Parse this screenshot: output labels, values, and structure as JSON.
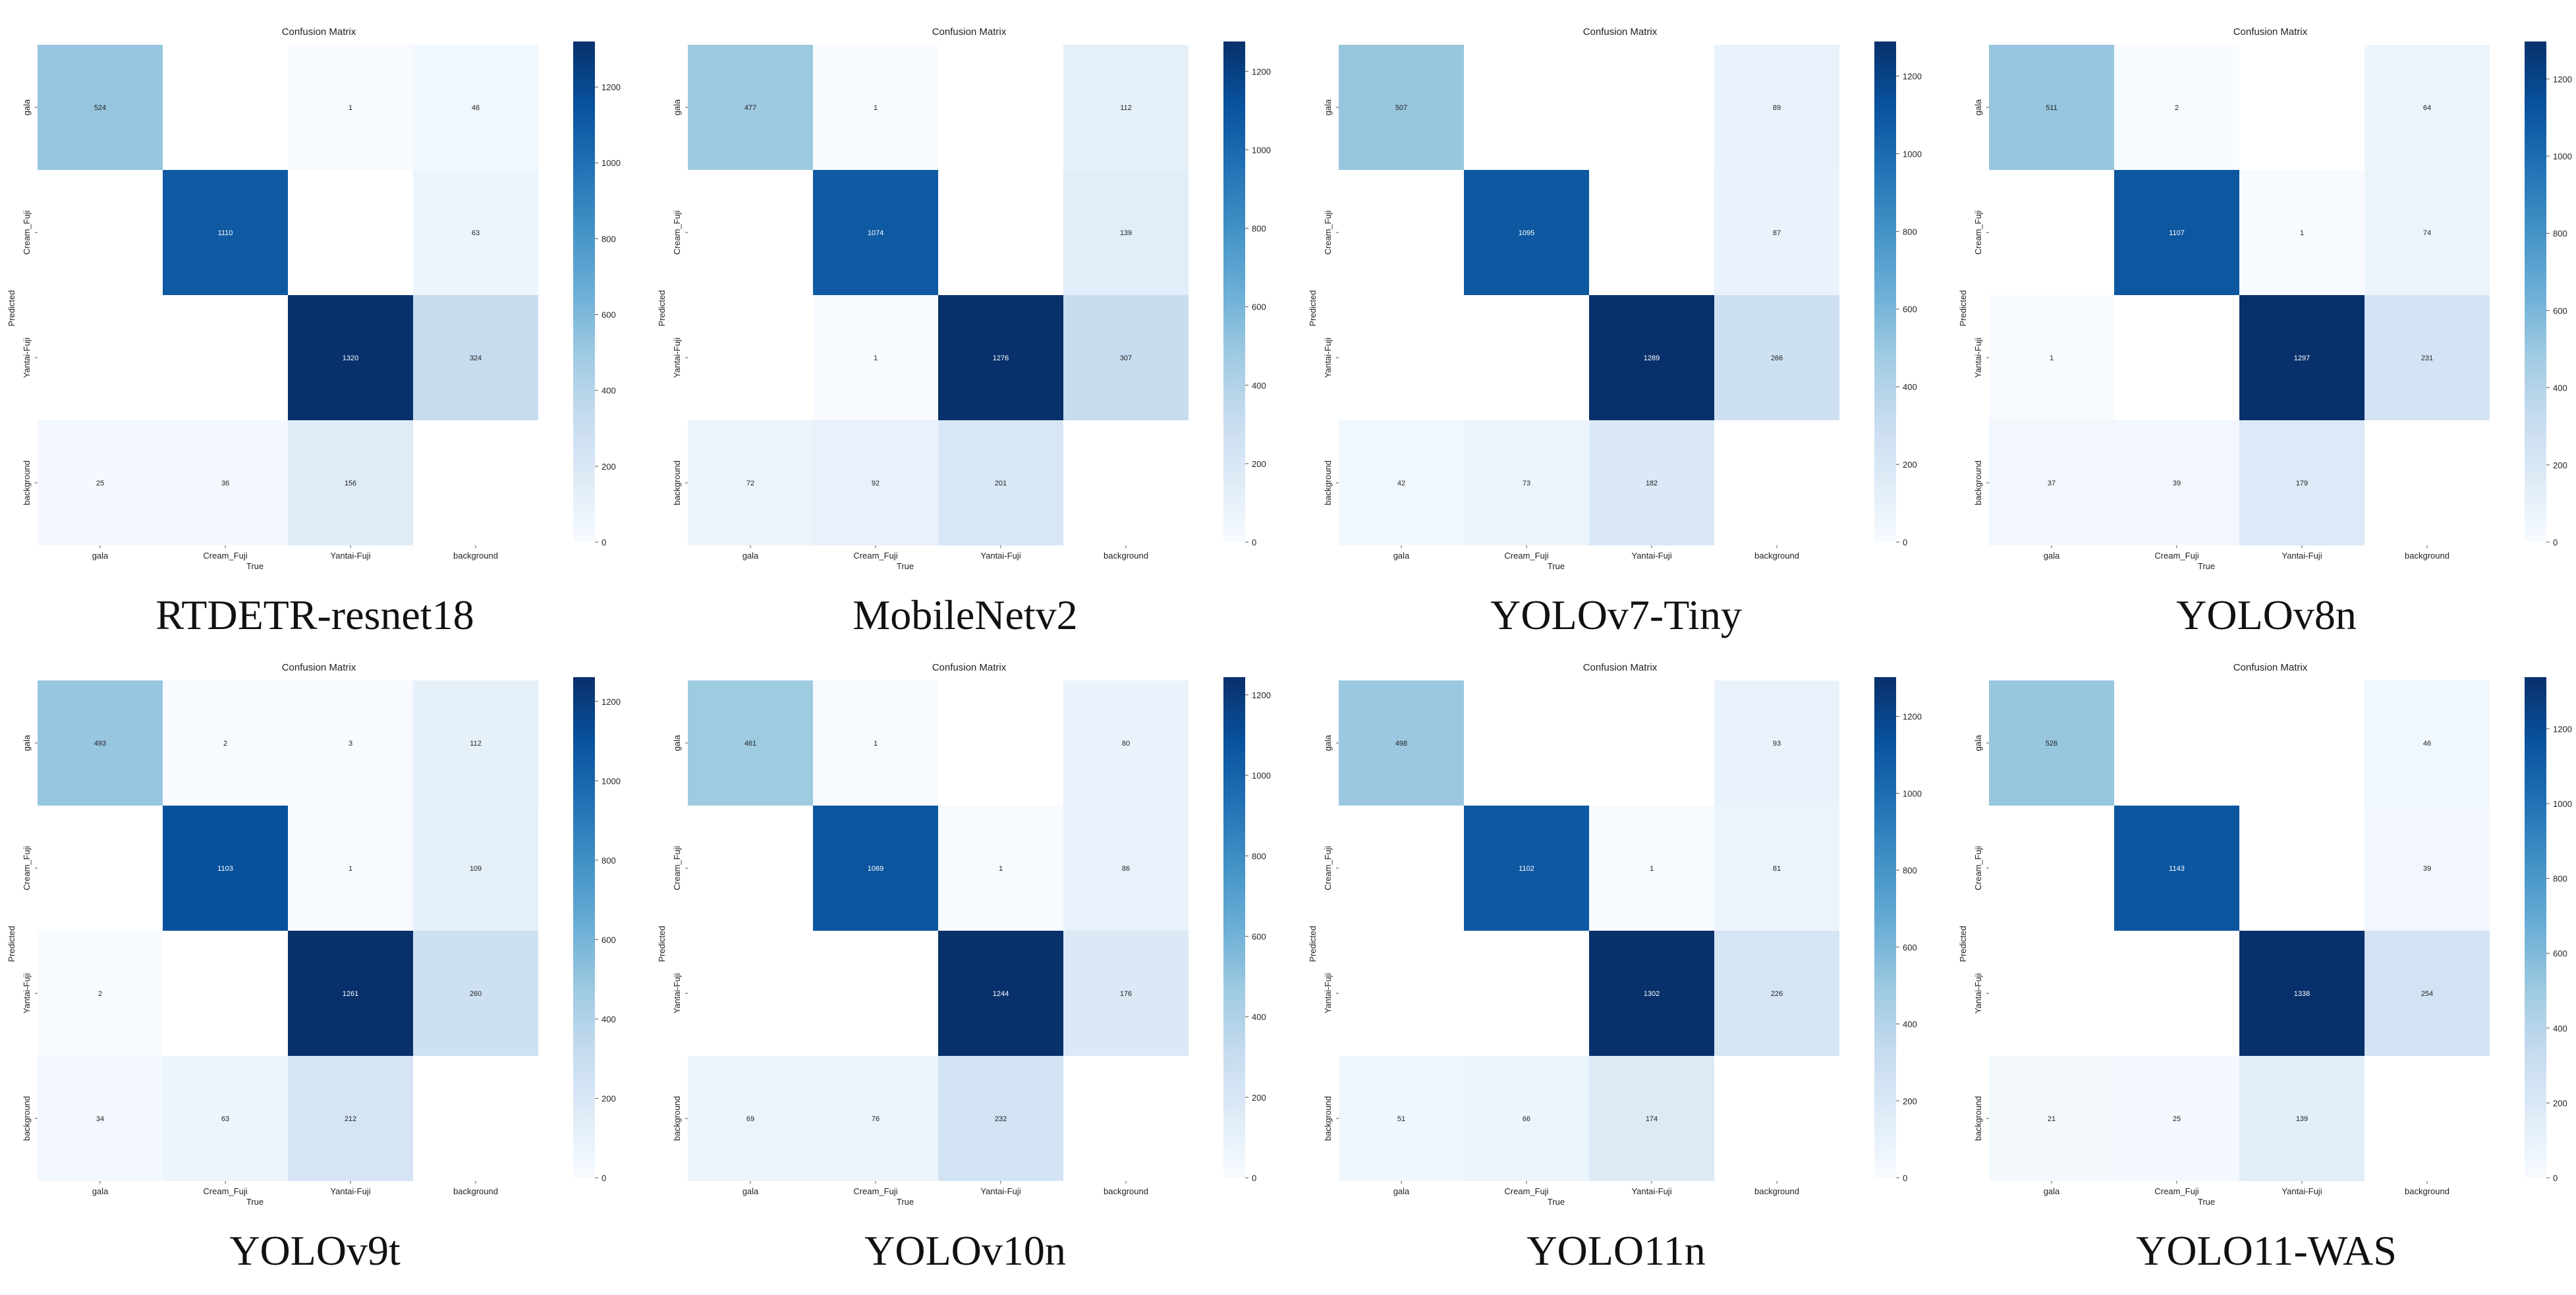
{
  "figure": {
    "categories": [
      "gala",
      "Cream_Fuji",
      "Yantai-Fuji",
      "background"
    ],
    "colormap": [
      "#f7fbff",
      "#deebf7",
      "#c6dbef",
      "#9ecae1",
      "#6baed6",
      "#4292c6",
      "#2171b5",
      "#08519c",
      "#08306b"
    ],
    "axis_x_label": "True",
    "axis_y_label": "Predicted",
    "chart_title": "Confusion Matrix"
  },
  "chart_data": [
    {
      "type": "heatmap",
      "title": "Confusion Matrix",
      "caption": "RTDETR-resnet18",
      "xlabel": "True",
      "ylabel": "Predicted",
      "ylabel_visible": true,
      "categories": [
        "gala",
        "Cream_Fuji",
        "Yantai-Fuji",
        "background"
      ],
      "matrix": [
        [
          524,
          null,
          1,
          46
        ],
        [
          null,
          1110,
          null,
          63
        ],
        [
          null,
          null,
          1320,
          324
        ],
        [
          25,
          36,
          156,
          null
        ]
      ],
      "vmin": 0,
      "vmax": 1320,
      "colorbar_ticks": [
        0,
        200,
        400,
        600,
        800,
        1000,
        1200
      ]
    },
    {
      "type": "heatmap",
      "title": "Confusion Matrix",
      "caption": "MobileNetv2",
      "xlabel": "True",
      "ylabel": "Predicted",
      "ylabel_visible": true,
      "categories": [
        "gala",
        "Cream_Fuji",
        "Yantai-Fuji",
        "background"
      ],
      "matrix": [
        [
          477,
          1,
          null,
          112
        ],
        [
          null,
          1074,
          null,
          139
        ],
        [
          null,
          1,
          1276,
          307
        ],
        [
          72,
          92,
          201,
          null
        ]
      ],
      "vmin": 0,
      "vmax": 1276,
      "colorbar_ticks": [
        0,
        200,
        400,
        600,
        800,
        1000,
        1200
      ]
    },
    {
      "type": "heatmap",
      "title": "Confusion Matrix",
      "caption": "YOLOv7-Tiny",
      "xlabel": "True",
      "ylabel": "Predicted",
      "ylabel_visible": true,
      "categories": [
        "gala",
        "Cream_Fuji",
        "Yantai-Fuji",
        "background"
      ],
      "matrix": [
        [
          507,
          null,
          null,
          89
        ],
        [
          null,
          1095,
          null,
          87
        ],
        [
          null,
          null,
          1289,
          266
        ],
        [
          42,
          73,
          182,
          null
        ]
      ],
      "vmin": 0,
      "vmax": 1289,
      "colorbar_ticks": [
        0,
        200,
        400,
        600,
        800,
        1000,
        1200
      ]
    },
    {
      "type": "heatmap",
      "title": "Confusion Matrix",
      "caption": "YOLOv8n",
      "xlabel": "True",
      "ylabel": "Predicted",
      "ylabel_visible": true,
      "categories": [
        "gala",
        "Cream_Fuji",
        "Yantai-Fuji",
        "background"
      ],
      "matrix": [
        [
          511,
          2,
          null,
          64
        ],
        [
          null,
          1107,
          1,
          74
        ],
        [
          1,
          null,
          1297,
          231
        ],
        [
          37,
          39,
          179,
          null
        ]
      ],
      "vmin": 0,
      "vmax": 1297,
      "colorbar_ticks": [
        0,
        200,
        400,
        600,
        800,
        1000,
        1200
      ]
    },
    {
      "type": "heatmap",
      "title": "Confusion Matrix",
      "caption": "YOLOv9t",
      "xlabel": "True",
      "ylabel": "Predicted",
      "ylabel_visible": true,
      "categories": [
        "gala",
        "Cream_Fuji",
        "Yantai-Fuji",
        "background"
      ],
      "matrix": [
        [
          493,
          2,
          3,
          112
        ],
        [
          null,
          1103,
          1,
          109
        ],
        [
          2,
          null,
          1261,
          260
        ],
        [
          34,
          63,
          212,
          null
        ]
      ],
      "vmin": 0,
      "vmax": 1261,
      "colorbar_ticks": [
        0,
        200,
        400,
        600,
        800,
        1000,
        1200
      ]
    },
    {
      "type": "heatmap",
      "title": "Confusion Matrix",
      "caption": "YOLOv10n",
      "xlabel": "True",
      "ylabel": "Predicted",
      "ylabel_visible": true,
      "categories": [
        "gala",
        "Cream_Fuji",
        "Yantai-Fuji",
        "background"
      ],
      "matrix": [
        [
          461,
          1,
          null,
          80
        ],
        [
          null,
          1069,
          1,
          86
        ],
        [
          null,
          null,
          1244,
          176
        ],
        [
          69,
          76,
          232,
          null
        ]
      ],
      "vmin": 0,
      "vmax": 1244,
      "colorbar_ticks": [
        0,
        200,
        400,
        600,
        800,
        1000,
        1200
      ]
    },
    {
      "type": "heatmap",
      "title": "Confusion Matrix",
      "caption": "YOLO11n",
      "xlabel": "True",
      "ylabel": "Predicted",
      "ylabel_visible": true,
      "categories": [
        "gala",
        "Cream_Fuji",
        "Yantai-Fuji",
        "background"
      ],
      "matrix": [
        [
          498,
          null,
          null,
          93
        ],
        [
          null,
          1102,
          1,
          81
        ],
        [
          null,
          null,
          1302,
          226
        ],
        [
          51,
          66,
          174,
          null
        ]
      ],
      "vmin": 0,
      "vmax": 1302,
      "colorbar_ticks": [
        0,
        200,
        400,
        600,
        800,
        1000,
        1200
      ]
    },
    {
      "type": "heatmap",
      "title": "Confusion Matrix",
      "caption": "YOLO11-WAS",
      "xlabel": "True",
      "ylabel": "Predicted",
      "ylabel_visible": true,
      "categories": [
        "gala",
        "Cream_Fuji",
        "Yantai-Fuji",
        "background"
      ],
      "matrix": [
        [
          526,
          null,
          null,
          46
        ],
        [
          null,
          1143,
          null,
          39
        ],
        [
          null,
          null,
          1338,
          254
        ],
        [
          21,
          25,
          139,
          null
        ]
      ],
      "vmin": 0,
      "vmax": 1338,
      "colorbar_ticks": [
        0,
        200,
        400,
        600,
        800,
        1000,
        1200
      ]
    }
  ]
}
